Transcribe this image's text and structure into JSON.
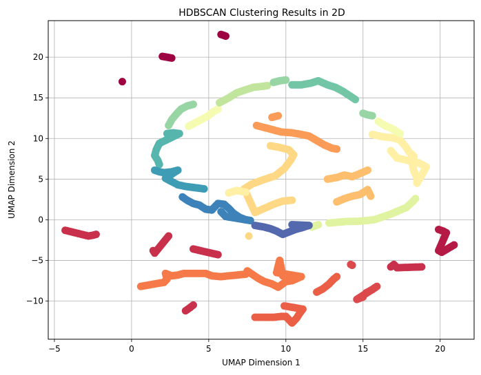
{
  "chart_data": {
    "type": "scatter",
    "title": "HDBSCAN Clustering Results in 2D",
    "xlabel": "UMAP Dimension 1",
    "ylabel": "UMAP Dimension 2",
    "xlim": [
      -5.4,
      22.2
    ],
    "ylim": [
      -14.7,
      24.5
    ],
    "xticks": [
      -5,
      0,
      5,
      10,
      15,
      20
    ],
    "yticks": [
      -10,
      -5,
      0,
      5,
      10,
      15,
      20
    ],
    "grid": true,
    "colormap": "Spectral",
    "clusters": [
      {
        "color": "#9e0142",
        "points": [
          [
            2.0,
            20.1
          ],
          [
            2.3,
            20.0
          ],
          [
            2.6,
            19.9
          ],
          [
            5.8,
            22.8
          ],
          [
            6.1,
            22.6
          ],
          [
            -0.6,
            17.0
          ]
        ]
      },
      {
        "color": "#b41a45",
        "points": [
          [
            19.9,
            -1.2
          ],
          [
            20.2,
            -1.4
          ],
          [
            20.4,
            -1.6
          ],
          [
            19.9,
            -3.8
          ],
          [
            20.1,
            -4.0
          ],
          [
            20.9,
            -3.1
          ]
        ]
      },
      {
        "color": "#c8304b",
        "points": [
          [
            -4.3,
            -1.3
          ],
          [
            -2.8,
            -2.0
          ],
          [
            -2.5,
            -1.9
          ],
          [
            -2.3,
            -1.8
          ],
          [
            1.4,
            -3.8
          ],
          [
            1.5,
            -4.1
          ],
          [
            2.4,
            -2.0
          ],
          [
            4.0,
            -3.6
          ],
          [
            5.6,
            -4.3
          ],
          [
            3.5,
            -11.2
          ],
          [
            3.8,
            -10.8
          ],
          [
            4.0,
            -10.5
          ],
          [
            16.8,
            -5.8
          ],
          [
            17.0,
            -5.5
          ],
          [
            17.2,
            -5.9
          ],
          [
            18.8,
            -5.8
          ]
        ]
      },
      {
        "color": "#dc494c",
        "points": [
          [
            14.2,
            -5.5
          ],
          [
            14.3,
            -5.6
          ],
          [
            15.2,
            -9.0
          ],
          [
            15.6,
            -8.6
          ],
          [
            15.9,
            -8.2
          ],
          [
            14.6,
            -9.8
          ],
          [
            15.0,
            -9.5
          ]
        ]
      },
      {
        "color": "#eb5f47",
        "points": [
          [
            12.0,
            -8.9
          ],
          [
            12.4,
            -8.5
          ],
          [
            12.8,
            -7.9
          ],
          [
            13.1,
            -7.3
          ],
          [
            13.3,
            -7.0
          ],
          [
            8.0,
            -12.0
          ],
          [
            8.6,
            -12.0
          ],
          [
            9.2,
            -12.0
          ],
          [
            9.7,
            -11.9
          ],
          [
            10.0,
            -11.9
          ],
          [
            10.2,
            -12.3
          ],
          [
            10.4,
            -12.7
          ],
          [
            10.7,
            -12.1
          ],
          [
            10.9,
            -11.5
          ],
          [
            11.1,
            -11.0
          ],
          [
            9.9,
            -10.6
          ]
        ]
      },
      {
        "color": "#f67a49",
        "points": [
          [
            0.6,
            -8.2
          ],
          [
            2.1,
            -7.7
          ],
          [
            2.3,
            -7.3
          ],
          [
            2.2,
            -6.6
          ],
          [
            2.6,
            -6.9
          ],
          [
            3.0,
            -6.8
          ],
          [
            3.4,
            -6.6
          ],
          [
            4.8,
            -6.6
          ],
          [
            5.2,
            -6.9
          ],
          [
            5.8,
            -7.0
          ],
          [
            6.3,
            -6.9
          ],
          [
            7.4,
            -6.7
          ],
          [
            7.5,
            -6.3
          ],
          [
            8.2,
            -7.2
          ],
          [
            8.6,
            -7.6
          ],
          [
            9.1,
            -7.9
          ],
          [
            9.5,
            -8.3
          ],
          [
            10.0,
            -7.6
          ],
          [
            10.4,
            -7.5
          ],
          [
            11.0,
            -7.0
          ],
          [
            9.4,
            -6.5
          ],
          [
            9.6,
            -5.0
          ],
          [
            9.8,
            -6.9
          ]
        ]
      },
      {
        "color": "#fa9c58",
        "points": [
          [
            8.1,
            11.6
          ],
          [
            9.1,
            11.1
          ],
          [
            9.7,
            10.8
          ],
          [
            10.4,
            10.7
          ],
          [
            11.0,
            10.5
          ],
          [
            11.5,
            10.3
          ],
          [
            12.5,
            9.2
          ],
          [
            13.0,
            8.8
          ],
          [
            13.3,
            8.7
          ],
          [
            9.1,
            12.6
          ],
          [
            9.5,
            12.8
          ]
        ]
      },
      {
        "color": "#fdbe6e",
        "points": [
          [
            12.7,
            5.0
          ],
          [
            13.3,
            5.2
          ],
          [
            13.8,
            5.5
          ],
          [
            14.3,
            5.3
          ],
          [
            14.7,
            5.6
          ],
          [
            15.3,
            6.1
          ],
          [
            13.3,
            2.2
          ],
          [
            13.8,
            2.6
          ],
          [
            14.3,
            2.9
          ],
          [
            14.8,
            3.1
          ],
          [
            15.3,
            3.7
          ],
          [
            15.5,
            2.9
          ]
        ]
      },
      {
        "color": "#fed884",
        "points": [
          [
            9.0,
            9.1
          ],
          [
            9.6,
            8.9
          ],
          [
            10.2,
            8.6
          ],
          [
            10.5,
            8.0
          ],
          [
            10.3,
            7.3
          ],
          [
            9.9,
            6.3
          ],
          [
            9.3,
            5.4
          ],
          [
            8.5,
            4.9
          ],
          [
            7.8,
            4.4
          ],
          [
            7.3,
            3.8
          ],
          [
            8.0,
            0.9
          ],
          [
            8.6,
            1.4
          ],
          [
            9.2,
            1.9
          ],
          [
            9.8,
            2.3
          ],
          [
            10.4,
            2.4
          ],
          [
            7.6,
            -2.0
          ]
        ]
      },
      {
        "color": "#fff0a6",
        "points": [
          [
            6.3,
            3.3
          ],
          [
            6.8,
            3.6
          ],
          [
            7.4,
            3.4
          ],
          [
            15.6,
            10.5
          ],
          [
            16.3,
            10.2
          ],
          [
            16.9,
            10.1
          ],
          [
            17.4,
            9.8
          ],
          [
            17.8,
            8.9
          ],
          [
            18.0,
            8.3
          ],
          [
            18.3,
            7.8
          ],
          [
            18.2,
            6.8
          ],
          [
            18.3,
            6.0
          ],
          [
            18.5,
            5.1
          ],
          [
            18.5,
            4.5
          ],
          [
            18.9,
            5.8
          ],
          [
            19.1,
            6.5
          ],
          [
            18.6,
            7.0
          ],
          [
            17.2,
            7.6
          ],
          [
            16.8,
            8.5
          ]
        ]
      },
      {
        "color": "#f6fbb2",
        "points": [
          [
            3.7,
            11.5
          ],
          [
            4.1,
            11.9
          ],
          [
            4.5,
            12.3
          ],
          [
            4.9,
            12.7
          ],
          [
            5.3,
            13.3
          ],
          [
            5.6,
            13.6
          ],
          [
            16.0,
            12.1
          ],
          [
            16.4,
            11.6
          ],
          [
            16.9,
            11.2
          ],
          [
            17.4,
            10.6
          ]
        ]
      },
      {
        "color": "#e0f3a1",
        "points": [
          [
            12.8,
            -0.4
          ],
          [
            13.4,
            -0.3
          ],
          [
            14.0,
            -0.2
          ],
          [
            14.6,
            -0.2
          ],
          [
            15.2,
            -0.1
          ],
          [
            15.7,
            0.0
          ],
          [
            16.2,
            0.3
          ],
          [
            16.8,
            0.7
          ],
          [
            17.3,
            1.1
          ],
          [
            17.8,
            1.5
          ],
          [
            18.2,
            2.2
          ],
          [
            18.4,
            2.6
          ],
          [
            11.7,
            -0.9
          ],
          [
            12.1,
            -0.6
          ]
        ]
      },
      {
        "color": "#c2e59e",
        "points": [
          [
            5.7,
            14.4
          ],
          [
            6.3,
            15.0
          ],
          [
            6.8,
            15.6
          ],
          [
            7.4,
            16.0
          ],
          [
            7.9,
            16.3
          ],
          [
            8.4,
            16.4
          ],
          [
            8.8,
            16.5
          ]
        ]
      },
      {
        "color": "#98d5a4",
        "points": [
          [
            9.2,
            16.9
          ],
          [
            9.6,
            17.1
          ],
          [
            10.0,
            17.2
          ],
          [
            2.4,
            11.6
          ],
          [
            2.6,
            12.3
          ],
          [
            2.9,
            13.0
          ],
          [
            3.2,
            13.6
          ],
          [
            3.6,
            14.0
          ],
          [
            4.0,
            14.2
          ],
          [
            15.0,
            13.1
          ],
          [
            15.3,
            12.9
          ],
          [
            15.6,
            12.8
          ]
        ]
      },
      {
        "color": "#73c6a5",
        "points": [
          [
            10.4,
            16.6
          ],
          [
            11.0,
            16.6
          ],
          [
            11.6,
            16.8
          ],
          [
            12.1,
            17.1
          ],
          [
            12.7,
            16.6
          ],
          [
            13.2,
            16.3
          ],
          [
            13.7,
            15.8
          ],
          [
            14.1,
            15.3
          ],
          [
            14.5,
            14.8
          ]
        ]
      },
      {
        "color": "#56b5ac",
        "points": [
          [
            2.3,
            10.6
          ],
          [
            2.7,
            10.7
          ],
          [
            3.1,
            10.6
          ],
          [
            1.8,
            9.4
          ],
          [
            1.6,
            8.6
          ],
          [
            1.5,
            7.9
          ],
          [
            1.7,
            7.3
          ],
          [
            1.8,
            6.8
          ]
        ]
      },
      {
        "color": "#3f9cb5",
        "points": [
          [
            1.5,
            6.1
          ],
          [
            1.8,
            5.9
          ],
          [
            2.1,
            5.8
          ],
          [
            2.6,
            5.9
          ],
          [
            3.0,
            6.1
          ],
          [
            2.2,
            5.1
          ],
          [
            2.6,
            4.7
          ],
          [
            3.0,
            4.3
          ],
          [
            3.5,
            4.1
          ],
          [
            3.9,
            4.0
          ],
          [
            4.3,
            3.9
          ],
          [
            4.7,
            3.8
          ]
        ]
      },
      {
        "color": "#3d82b9",
        "points": [
          [
            3.3,
            2.8
          ],
          [
            3.6,
            2.4
          ],
          [
            4.0,
            2.0
          ],
          [
            4.4,
            1.8
          ],
          [
            4.8,
            1.3
          ],
          [
            5.2,
            1.2
          ],
          [
            5.6,
            2.0
          ],
          [
            6.0,
            1.9
          ],
          [
            6.3,
            1.4
          ],
          [
            6.6,
            0.8
          ],
          [
            7.0,
            0.3
          ],
          [
            7.4,
            0.0
          ],
          [
            7.7,
            -0.1
          ],
          [
            6.1,
            0.4
          ],
          [
            5.8,
            1.0
          ]
        ]
      },
      {
        "color": "#5468ae",
        "points": [
          [
            8.0,
            -0.7
          ],
          [
            8.6,
            -0.9
          ],
          [
            9.0,
            -1.1
          ],
          [
            9.4,
            -1.4
          ],
          [
            9.8,
            -1.8
          ],
          [
            10.2,
            -1.5
          ],
          [
            10.6,
            -1.2
          ],
          [
            11.0,
            -1.0
          ],
          [
            11.5,
            -0.7
          ],
          [
            10.4,
            -0.6
          ]
        ]
      }
    ]
  }
}
